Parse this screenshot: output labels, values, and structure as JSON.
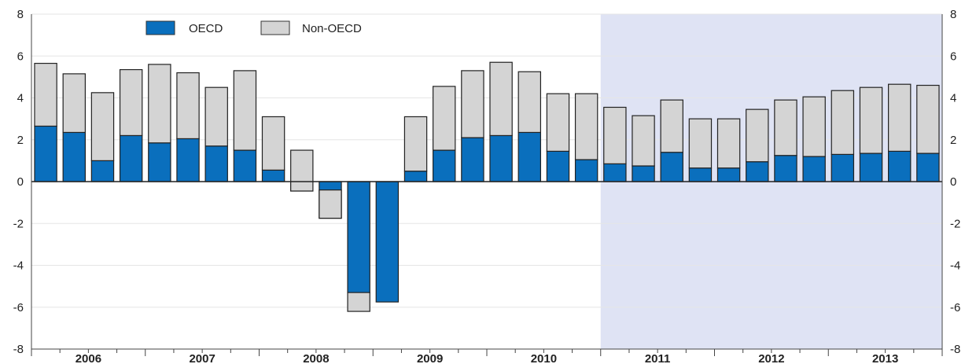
{
  "chart_data": {
    "type": "bar",
    "stacked": true,
    "ylim": [
      -8,
      8
    ],
    "yticks": [
      8,
      6,
      4,
      2,
      0,
      -2,
      -4,
      -6,
      -8
    ],
    "year_labels": [
      "2006",
      "2007",
      "2008",
      "2009",
      "2010",
      "2011",
      "2012",
      "2013"
    ],
    "projection_start_year": "2011",
    "grid": true,
    "legend_position": "top-left",
    "colors": {
      "oecd": "#0a6fbd",
      "non_oecd": "#d4d4d4",
      "projection_band": "#dfe3f4"
    },
    "series": [
      {
        "name": "OECD",
        "values": [
          2.65,
          2.35,
          1.0,
          2.2,
          1.85,
          2.05,
          1.7,
          1.5,
          0.55,
          -0.45,
          -1.75,
          -5.3,
          -5.75,
          0.5,
          1.5,
          2.1,
          2.2,
          2.35,
          1.45,
          1.05,
          0.85,
          0.75,
          1.4,
          0.65,
          0.65,
          0.95,
          1.25,
          1.2,
          1.3,
          1.35,
          1.45,
          1.35
        ]
      },
      {
        "name": "Non-OECD",
        "values": [
          3.0,
          2.8,
          3.25,
          3.15,
          3.75,
          3.15,
          2.8,
          3.8,
          2.55,
          1.95,
          1.35,
          -0.9,
          0.0,
          2.6,
          3.05,
          3.2,
          3.5,
          2.9,
          2.75,
          3.15,
          2.7,
          2.4,
          2.5,
          2.35,
          2.35,
          2.5,
          2.65,
          2.85,
          3.05,
          3.15,
          3.2,
          3.25
        ]
      }
    ]
  }
}
